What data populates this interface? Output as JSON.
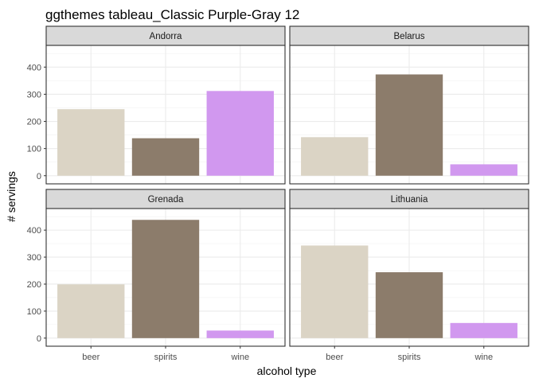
{
  "chart_data": {
    "type": "bar",
    "title": "ggthemes tableau_Classic Purple-Gray 12",
    "xlabel": "alcohol type",
    "ylabel": "# servings",
    "ylim": [
      0,
      480
    ],
    "y_ticks": [
      0,
      100,
      200,
      300,
      400
    ],
    "categories": [
      "beer",
      "spirits",
      "wine"
    ],
    "colors": {
      "beer": "#dbd4c5",
      "spirits": "#8c7c6b",
      "wine": "#d198ef"
    },
    "panel_strip_fill": "#d9d9d9",
    "grid": true,
    "facet_layout": "2x2",
    "facets": [
      {
        "name": "Andorra",
        "values": [
          245,
          138,
          312
        ]
      },
      {
        "name": "Belarus",
        "values": [
          142,
          373,
          42
        ]
      },
      {
        "name": "Grenada",
        "values": [
          199,
          438,
          28
        ]
      },
      {
        "name": "Lithuania",
        "values": [
          343,
          244,
          56
        ]
      }
    ]
  }
}
